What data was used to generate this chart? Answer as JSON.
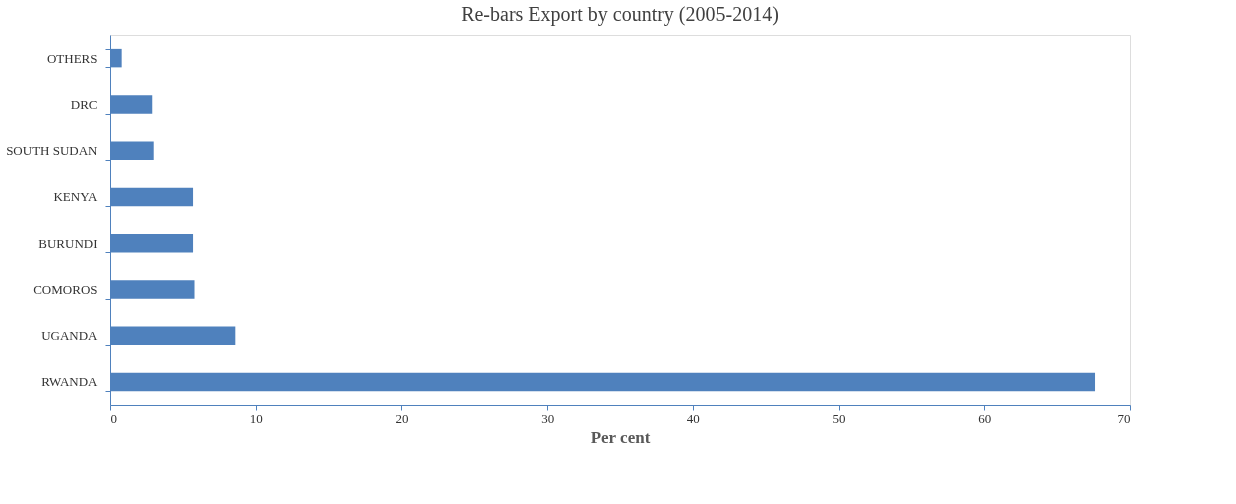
{
  "chart_data": {
    "type": "bar",
    "orientation": "horizontal",
    "title": "Re-bars Export by country (2005-2014)",
    "xlabel": "Per cent",
    "categories": [
      "OTHERS",
      "DRC",
      "SOUTH SUDAN",
      "KENYA",
      "BURUNDI",
      "COMOROS",
      "UGANDA",
      "RWANDA"
    ],
    "values": [
      0.8,
      2.9,
      3.0,
      5.7,
      5.7,
      5.8,
      8.6,
      67.6
    ],
    "color": "#4f81bd",
    "xlim": [
      0,
      70
    ],
    "xticks": [
      0,
      10,
      20,
      30,
      40,
      50,
      60,
      70
    ],
    "grid": false
  }
}
